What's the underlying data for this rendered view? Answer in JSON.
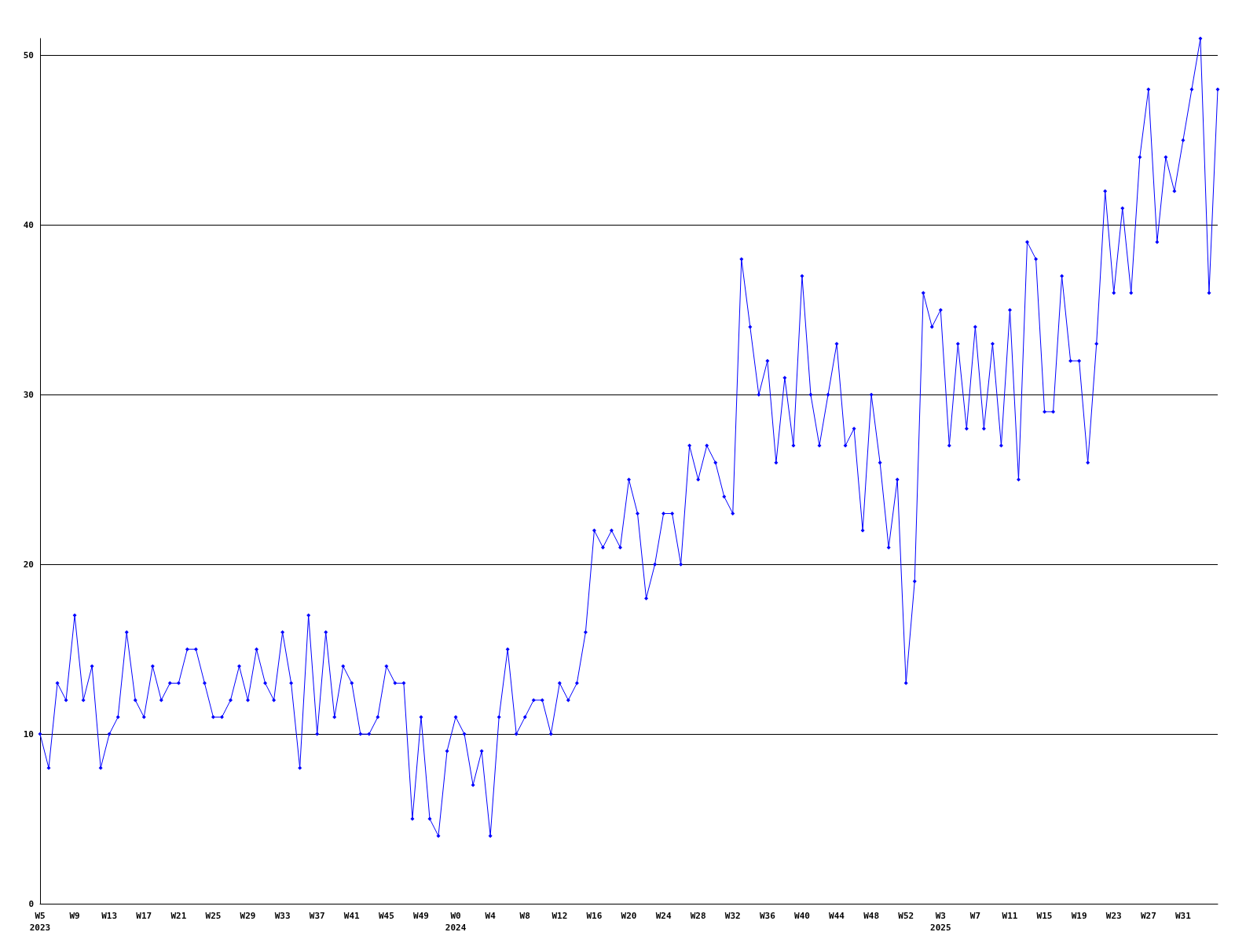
{
  "chart_data": {
    "type": "line",
    "categories": [
      "W5\n2023",
      null,
      null,
      null,
      "W9",
      null,
      null,
      null,
      "W13",
      null,
      null,
      null,
      "W17",
      null,
      null,
      null,
      "W21",
      null,
      null,
      null,
      "W25",
      null,
      null,
      null,
      "W29",
      null,
      null,
      null,
      "W33",
      null,
      null,
      null,
      "W37",
      null,
      null,
      null,
      "W41",
      null,
      null,
      null,
      "W45",
      null,
      null,
      null,
      "W49",
      null,
      null,
      null,
      "W0\n2024",
      null,
      null,
      null,
      "W4",
      null,
      null,
      null,
      "W8",
      null,
      null,
      null,
      "W12",
      null,
      null,
      null,
      "W16",
      null,
      null,
      null,
      "W20",
      null,
      null,
      null,
      "W24",
      null,
      null,
      null,
      "W28",
      null,
      null,
      null,
      "W32",
      null,
      null,
      null,
      "W36",
      null,
      null,
      null,
      "W40",
      null,
      null,
      null,
      "W44",
      null,
      null,
      null,
      "W48",
      null,
      null,
      null,
      "W52",
      null,
      null,
      null,
      "W3\n2025",
      null,
      null,
      null,
      "W7",
      null,
      null,
      null,
      "W11",
      null,
      null,
      null,
      "W15",
      null,
      null,
      null,
      "W19",
      null,
      null,
      null,
      "W23",
      null,
      null,
      null,
      "W27",
      null,
      null,
      null,
      "W31",
      null,
      null,
      null,
      null
    ],
    "series": [
      {
        "color": "#0000ff",
        "values": [
          10,
          8,
          13,
          12,
          17,
          12,
          14,
          8,
          10,
          11,
          16,
          12,
          11,
          14,
          12,
          13,
          13,
          15,
          15,
          13,
          11,
          11,
          12,
          14,
          12,
          15,
          13,
          12,
          16,
          13,
          8,
          17,
          10,
          16,
          11,
          14,
          13,
          10,
          10,
          11,
          14,
          13,
          13,
          5,
          11,
          5,
          4,
          9,
          11,
          10,
          7,
          9,
          4,
          11,
          15,
          10,
          11,
          12,
          12,
          10,
          13,
          12,
          13,
          16,
          22,
          21,
          22,
          21,
          25,
          23,
          18,
          20,
          23,
          23,
          20,
          27,
          25,
          27,
          26,
          24,
          23,
          38,
          34,
          30,
          32,
          26,
          31,
          27,
          37,
          30,
          27,
          30,
          33,
          27,
          28,
          22,
          30,
          26,
          21,
          25,
          13,
          19,
          36,
          34,
          35,
          27,
          33,
          28,
          34,
          28,
          33,
          27,
          35,
          25,
          39,
          38,
          29,
          29,
          37,
          32,
          32,
          26,
          33,
          42,
          36,
          41,
          36,
          44,
          48,
          39,
          44,
          42,
          45,
          48,
          51,
          36,
          48
        ]
      }
    ],
    "ylim": [
      0,
      51
    ],
    "yticks": [
      0,
      10,
      20,
      30,
      40,
      50
    ],
    "grid": "y",
    "marker": "diamond",
    "line_style": "solid"
  }
}
